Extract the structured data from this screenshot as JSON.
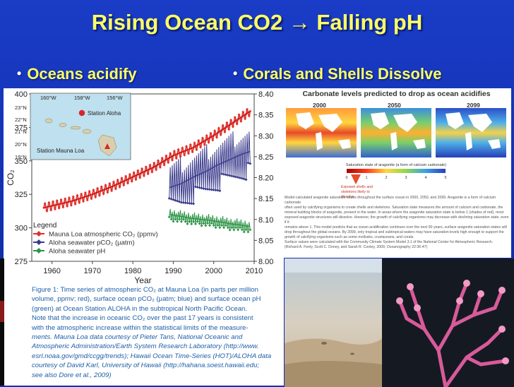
{
  "slide": {
    "title": "Rising Ocean CO2 → Falling pH",
    "bullets": [
      {
        "text": "Oceans acidify"
      },
      {
        "text": "Corals and Shells Dissolve"
      }
    ]
  },
  "chart_data": {
    "type": "line",
    "xlabel": "Year",
    "ylabel": "CO₂",
    "xlim": [
      1955,
      2010
    ],
    "ylim": [
      275,
      400
    ],
    "y2lim": [
      8.0,
      8.4
    ],
    "x_ticks": [
      "1960",
      "1970",
      "1980",
      "1990",
      "2000",
      "2010"
    ],
    "y_ticks": [
      "275",
      "300",
      "325",
      "350",
      "375",
      "400"
    ],
    "y2_ticks": [
      "8.00",
      "8.05",
      "8.10",
      "8.15",
      "8.20",
      "8.25",
      "8.30",
      "8.35",
      "8.40"
    ],
    "legend_title": "Legend",
    "legend_position": "bottom-left",
    "series": [
      {
        "name": "Mauna Loa atmospheric CO₂ (ppmv)",
        "color": "#e0312b",
        "axis": "left",
        "x": [
          1958,
          1965,
          1970,
          1975,
          1980,
          1985,
          1990,
          1995,
          2000,
          2005,
          2009
        ],
        "y": [
          315,
          320,
          325,
          331,
          338,
          345,
          354,
          360,
          369,
          379,
          387
        ]
      },
      {
        "name": "Aloha seawater pCO₂ (µatm)",
        "color": "#3a3a8c",
        "axis": "left",
        "x": [
          1989,
          1992,
          1995,
          1998,
          2001,
          2004,
          2007,
          2009
        ],
        "y": [
          330,
          333,
          338,
          342,
          347,
          351,
          355,
          357
        ]
      },
      {
        "name": "Aloha seawater pH",
        "color": "#2e9447",
        "axis": "right",
        "x": [
          1989,
          1992,
          1995,
          1998,
          2001,
          2004,
          2007,
          2009
        ],
        "y": [
          8.112,
          8.107,
          8.102,
          8.099,
          8.095,
          8.09,
          8.086,
          8.083
        ]
      }
    ]
  },
  "map_inset": {
    "lon_labels": [
      "160°W",
      "158°W",
      "156°W"
    ],
    "lat_labels": [
      "23°N",
      "22°N",
      "21°N",
      "20°N",
      "19°N"
    ],
    "station_aloha": "Station Aloha",
    "station_mauna_loa": "Station Mauna Loa"
  },
  "caption_lines": [
    "Figure 1: Time series of atmospheric CO₂ at Mauna Loa (in parts per million",
    "volume, ppmv; red), surface ocean pCO₂ (µatm; blue) and surface ocean pH",
    "(green) at Ocean Station ALOHA in the subtropical North Pacific Ocean.",
    "Note that the increase in oceanic CO₂ over the past 17 years is consistent",
    "with the atmospheric increase within the statistical limits of the measure-",
    "ments. Mauna Loa data courtesy of Pieter Tans, National Oceanic and",
    "Atmospheric Administration/Earth System Research Laboratory (http://www.",
    "esrl.noaa.gov/gmd/ccgg/trends); Hawaii Ocean Time-Series (HOT)/ALOHA data",
    "courtesy of David Karl, University of Hawaii (http://hahana.soest.hawaii.edu;",
    "see also Dore et al., 2009)"
  ],
  "right_figure": {
    "title": "Carbonate levels predicted to drop as ocean acidifies",
    "years": [
      "2000",
      "2050",
      "2099"
    ],
    "colorbar_label": "Saturation state of aragonite (a form of calcium carbonate)",
    "colorbar_ticks": [
      "0",
      "1",
      "2",
      "3",
      "4",
      "5"
    ],
    "arrow_label": "Exposed shells and skeletons likely to dissolve",
    "body_lines": [
      "Model-calculated aragonite saturation states throughout the surface ocean in 2000, 2050, and 2099. Aragonite is a form of calcium carbonate",
      "often used by calcifying organisms to create shells and skeletons. Saturation state measures the amount of calcium and carbonate, the",
      "mineral building blocks of aragonite, present in the water. In areas where the aragonite saturation state is below 1 (shades of red), most",
      "exposed aragonite structures will dissolve. However, the growth of calcifying organisms may decrease with declining saturation state, even if it",
      "remains above 1. This model predicts that as ocean acidification continues over the next 90 years, surface aragonite saturation states will",
      "drop throughout the global oceans. By 2099, only tropical and subtropical waters may have saturation levels high enough to support the",
      "growth of calcifying organisms such as some mollusks, crustaceans, and corals.",
      "",
      "Surface values were calculated with the Community Climate System Model 3.1 of the National Center for Atmospheric Research.",
      "",
      "(Richard A. Feely, Scott C. Doney, and Sarah R. Cooley, 2009, Oceanography 22:36-47)"
    ]
  },
  "colors": {
    "background": "#1330b8",
    "title": "#ffff66",
    "caption": "#1d5fa8"
  }
}
